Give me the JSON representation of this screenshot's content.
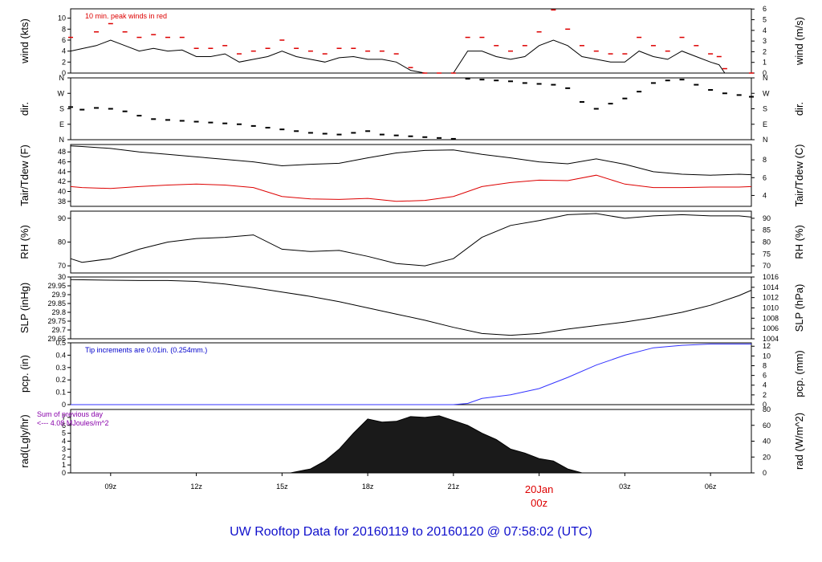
{
  "title": "UW Rooftop Data for 20160119  to  20160120 @ 07:58:02  (UTC)",
  "x_axis": {
    "start_hour": 7.6,
    "end_hour": 31.43,
    "ticks": [
      {
        "hour": 9,
        "label": "09z"
      },
      {
        "hour": 12,
        "label": "12z"
      },
      {
        "hour": 15,
        "label": "15z"
      },
      {
        "hour": 18,
        "label": "18z"
      },
      {
        "hour": 21,
        "label": "21z"
      },
      {
        "hour": 27,
        "label": "03z"
      },
      {
        "hour": 30,
        "label": "06z"
      }
    ],
    "day_marker": {
      "hour": 24,
      "date": "20Jan",
      "time": "00z",
      "color": "#dd0000"
    }
  },
  "chart_data": [
    {
      "type": "line",
      "panel": "wind",
      "ylabel_left": "wind (kts)",
      "ylabel_right": "wind (m/s)",
      "ylim": [
        0,
        11.7
      ],
      "left_ticks": [
        0,
        2,
        4,
        6,
        8,
        10
      ],
      "right_ticks": [
        0,
        1,
        2,
        3,
        4,
        5,
        6
      ],
      "right_scale": 0.5144,
      "annotation": "10 min. peak winds in red",
      "annotation_color": "#dd0000",
      "series": [
        {
          "name": "wind",
          "color": "#000000",
          "x": [
            7.6,
            8.5,
            9,
            9.5,
            10,
            10.5,
            11,
            11.5,
            12,
            12.5,
            13,
            13.5,
            14,
            14.5,
            15,
            15.5,
            16,
            16.5,
            17,
            17.5,
            18,
            18.5,
            19,
            19.5,
            20,
            20.5,
            21,
            21.5,
            22,
            22.5,
            23,
            23.5,
            24,
            24.5,
            25,
            25.5,
            26,
            26.5,
            27,
            27.5,
            28,
            28.5,
            29,
            29.5,
            30,
            30.3,
            30.5,
            31.43
          ],
          "y": [
            4,
            5,
            6,
            5,
            4,
            4.5,
            4,
            4.2,
            3,
            3,
            3.5,
            2,
            2.5,
            3,
            4,
            3,
            2.5,
            2,
            2.8,
            3,
            2.5,
            2.5,
            2,
            0.5,
            0,
            0,
            0,
            4,
            4,
            3,
            2.5,
            3,
            5,
            6,
            5,
            3,
            2.5,
            2,
            2,
            4,
            3,
            2.5,
            4,
            3,
            2,
            1.5,
            0,
            0
          ]
        },
        {
          "name": "peak",
          "color": "#dd0000",
          "x": [
            7.6,
            8.5,
            9,
            9.5,
            10,
            10.5,
            11,
            11.5,
            12,
            12.5,
            13,
            13.5,
            14,
            14.5,
            15,
            15.5,
            16,
            16.5,
            17,
            17.5,
            18,
            18.5,
            19,
            19.5,
            20,
            20.5,
            21,
            21.5,
            22,
            22.5,
            23,
            23.5,
            24,
            24.5,
            25,
            25.5,
            26,
            26.5,
            27,
            27.5,
            28,
            28.5,
            29,
            29.5,
            30,
            30.3,
            30.5,
            31.43
          ],
          "y": [
            6.5,
            7.5,
            9,
            7.5,
            6.5,
            7,
            6.5,
            6.5,
            4.5,
            4.5,
            5,
            3.5,
            4,
            4.5,
            6,
            4.5,
            4,
            3.5,
            4.5,
            4.5,
            4,
            4,
            3.5,
            1,
            0,
            0,
            0,
            6.5,
            6.5,
            5,
            4,
            5,
            7.5,
            11.5,
            8,
            5,
            4,
            3.5,
            3.5,
            6.5,
            5,
            4,
            6.5,
            5,
            3.5,
            3,
            0.8,
            0
          ]
        }
      ]
    },
    {
      "type": "scatter",
      "panel": "direction",
      "ylabel_left": "dir.",
      "ylabel_right": "dir.",
      "ylim": [
        0,
        360
      ],
      "tick_labels": [
        {
          "value": 360,
          "label": "N"
        },
        {
          "value": 270,
          "label": "W"
        },
        {
          "value": 180,
          "label": "S"
        },
        {
          "value": 90,
          "label": "E"
        },
        {
          "value": 0,
          "label": "N"
        }
      ],
      "series": [
        {
          "name": "dir",
          "color": "#000000",
          "x": [
            7.6,
            8,
            8.5,
            9,
            9.5,
            10,
            10.5,
            11,
            11.5,
            12,
            12.5,
            13,
            13.5,
            14,
            14.5,
            15,
            15.5,
            16,
            16.5,
            17,
            17.5,
            18,
            18.5,
            19,
            19.5,
            20,
            20.5,
            21,
            21.5,
            22,
            22.5,
            23,
            23.5,
            24,
            24.5,
            25,
            25.5,
            26,
            26.5,
            27,
            27.5,
            28,
            28.5,
            29,
            29.5,
            30,
            30.5,
            31,
            31.43
          ],
          "y": [
            190,
            175,
            185,
            180,
            165,
            140,
            120,
            115,
            110,
            105,
            100,
            95,
            90,
            80,
            70,
            60,
            50,
            40,
            35,
            30,
            40,
            50,
            30,
            25,
            20,
            15,
            10,
            5,
            355,
            350,
            345,
            340,
            330,
            325,
            320,
            300,
            220,
            180,
            210,
            240,
            280,
            330,
            345,
            350,
            320,
            290,
            270,
            260,
            250
          ]
        }
      ]
    },
    {
      "type": "line",
      "panel": "temperature",
      "ylabel_left": "Tair/Tdew (F)",
      "ylabel_right": "Tair/Tdew (C)",
      "ylim": [
        37,
        49.5
      ],
      "left_ticks": [
        38,
        40,
        42,
        44,
        46,
        48
      ],
      "right_ticks": [
        4,
        6,
        8
      ],
      "series": [
        {
          "name": "Tair",
          "color": "#000000",
          "x": [
            7.6,
            8,
            9,
            10,
            11,
            12,
            13,
            14,
            15,
            16,
            17,
            18,
            19,
            20,
            21,
            22,
            23,
            24,
            25,
            26,
            27,
            28,
            29,
            30,
            31,
            31.43
          ],
          "y": [
            49.2,
            49.1,
            48.7,
            48,
            47.5,
            47,
            46.5,
            46,
            45.2,
            45.5,
            45.7,
            46.8,
            47.8,
            48.3,
            48.4,
            47.5,
            46.8,
            46,
            45.6,
            46.6,
            45.5,
            44,
            43.5,
            43.3,
            43.5,
            43.4
          ]
        },
        {
          "name": "Tdew",
          "color": "#dd0000",
          "x": [
            7.6,
            8,
            9,
            10,
            11,
            12,
            13,
            14,
            15,
            16,
            17,
            18,
            19,
            20,
            21,
            22,
            23,
            24,
            25,
            26,
            27,
            28,
            29,
            30,
            31,
            31.43
          ],
          "y": [
            41,
            40.8,
            40.6,
            41,
            41.3,
            41.5,
            41.3,
            40.8,
            39,
            38.5,
            38.4,
            38.6,
            38,
            38.2,
            39,
            41,
            41.8,
            42.3,
            42.2,
            43.3,
            41.5,
            40.8,
            40.8,
            40.9,
            40.9,
            41
          ]
        }
      ]
    },
    {
      "type": "line",
      "panel": "humidity",
      "ylabel_left": "RH (%)",
      "ylabel_right": "RH (%)",
      "ylim": [
        67,
        93
      ],
      "left_ticks": [
        70,
        80,
        90
      ],
      "right_ticks": [
        70,
        75,
        80,
        85,
        90
      ],
      "series": [
        {
          "name": "RH",
          "color": "#000000",
          "x": [
            7.6,
            8,
            9,
            10,
            11,
            12,
            13,
            14,
            15,
            16,
            17,
            18,
            19,
            20,
            21,
            22,
            23,
            24,
            25,
            26,
            27,
            28,
            29,
            30,
            31,
            31.43
          ],
          "y": [
            73,
            71.5,
            73,
            77,
            80,
            81.5,
            82,
            83,
            77,
            76,
            76.5,
            74,
            71,
            70,
            73,
            82,
            87,
            89,
            91.5,
            92,
            90,
            91,
            91.5,
            91,
            91,
            90.5
          ]
        }
      ]
    },
    {
      "type": "line",
      "panel": "pressure",
      "ylabel_left": "SLP (inHg)",
      "ylabel_right": "SLP (hPa)",
      "ylim": [
        29.65,
        30.0
      ],
      "left_ticks": [
        29.65,
        29.7,
        29.75,
        29.8,
        29.85,
        29.9,
        29.95,
        30.0
      ],
      "right_ticks": [
        1004,
        1006,
        1008,
        1010,
        1012,
        1014,
        1016
      ],
      "series": [
        {
          "name": "SLP",
          "color": "#000000",
          "x": [
            7.6,
            9,
            10,
            11,
            12,
            13,
            14,
            15,
            16,
            17,
            18,
            19,
            20,
            21,
            22,
            23,
            24,
            25,
            26,
            27,
            28,
            29,
            30,
            31,
            31.43
          ],
          "y": [
            29.985,
            29.982,
            29.98,
            29.98,
            29.975,
            29.96,
            29.94,
            29.915,
            29.89,
            29.86,
            29.825,
            29.79,
            29.755,
            29.715,
            29.68,
            29.67,
            29.68,
            29.705,
            29.725,
            29.745,
            29.77,
            29.8,
            29.84,
            29.895,
            29.925
          ]
        }
      ]
    },
    {
      "type": "line",
      "panel": "precipitation",
      "ylabel_left": "pcp. (in)",
      "ylabel_right": "pcp. (mm)",
      "ylim": [
        0,
        0.5
      ],
      "left_ticks": [
        0.0,
        0.1,
        0.2,
        0.3,
        0.4,
        0.5
      ],
      "right_ticks": [
        0,
        2,
        4,
        6,
        8,
        10,
        12
      ],
      "annotation": "Tip increments are 0.01in. (0.254mm.)",
      "annotation_color": "#0000cc",
      "series": [
        {
          "name": "pcp",
          "color": "#3333ff",
          "x": [
            7.6,
            21,
            21.5,
            22,
            23,
            24,
            25,
            26,
            27,
            28,
            29,
            30,
            31.43
          ],
          "y": [
            0,
            0,
            0.01,
            0.05,
            0.08,
            0.13,
            0.22,
            0.32,
            0.4,
            0.46,
            0.48,
            0.49,
            0.49
          ]
        }
      ]
    },
    {
      "type": "area",
      "panel": "radiation",
      "ylabel_left": "rad(Lgly/hr)",
      "ylabel_right": "rad (W/m^2)",
      "ylim": [
        0,
        8
      ],
      "left_ticks": [
        0,
        1,
        2,
        3,
        4,
        5,
        6,
        7
      ],
      "right_ticks": [
        0,
        20,
        40,
        60,
        80
      ],
      "note_line1": "Sum of previous day",
      "note_line2": "<--- 4.08 MJoules/m^2",
      "note_color": "#8800aa",
      "series": [
        {
          "name": "rad",
          "color": "#000000",
          "x": [
            7.6,
            15.3,
            16,
            16.5,
            17,
            17.5,
            18,
            18.5,
            19,
            19.5,
            20,
            20.5,
            21,
            21.5,
            22,
            22.5,
            23,
            23.5,
            24,
            24.5,
            25,
            25.5
          ],
          "y": [
            0,
            0,
            0.5,
            1.5,
            3,
            5,
            6.8,
            6.4,
            6.5,
            7.1,
            7.0,
            7.2,
            6.6,
            6,
            5,
            4.2,
            3,
            2.5,
            1.8,
            1.5,
            0.5,
            0
          ]
        }
      ]
    }
  ]
}
